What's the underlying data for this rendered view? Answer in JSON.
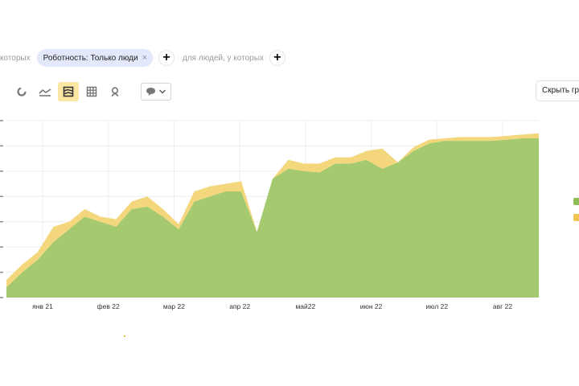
{
  "filters": {
    "left_text": "которых",
    "chip_label": "Роботность: Только люди",
    "chip_close": "×",
    "add_symbol": "+",
    "right_text": "для людей, у которых"
  },
  "toolbar": {
    "tools": [
      "donut-chart-icon",
      "line-chart-icon",
      "stacked-area-icon",
      "table-grid-icon",
      "map-pin-icon"
    ],
    "active_tool": "stacked-area-icon",
    "dropdown_icon": "speech-bubble-icon",
    "dropdown_arrow": "chevron-down-icon"
  },
  "hide_button": {
    "label": "Скрыть гр"
  },
  "colors": {
    "green": "#a5c96f",
    "yellow": "#f4d77c",
    "grid": "#ececec"
  },
  "chart_data": {
    "type": "area",
    "stacked": true,
    "x_ticks": [
      "янв 21",
      "фев 22",
      "мар 22",
      "апр 22",
      "май22",
      "июн 22",
      "июл 22",
      "авг 22"
    ],
    "ylim": [
      0,
      7
    ],
    "y_tick_count": 8,
    "grid": true,
    "legend": "right",
    "x": [
      "01.01",
      "08.01",
      "15.01",
      "22.01",
      "29.01",
      "05.02",
      "12.02",
      "19.02",
      "26.02",
      "05.03",
      "12.03",
      "19.03",
      "26.03",
      "02.04",
      "09.04",
      "16.04",
      "23.04",
      "30.04",
      "07.05",
      "14.05",
      "21.05",
      "28.05",
      "04.06",
      "11.06",
      "18.06",
      "25.06",
      "02.07",
      "09.07",
      "16.07",
      "23.07",
      "30.07",
      "06.08",
      "13.08",
      "20.08",
      "27.08"
    ],
    "series": [
      {
        "color": "#a5c96f",
        "values": [
          0.4,
          1.0,
          1.5,
          2.2,
          2.7,
          3.2,
          3.0,
          2.8,
          3.5,
          3.6,
          3.2,
          2.7,
          3.8,
          4.0,
          4.2,
          4.2,
          2.6,
          4.7,
          5.1,
          5.0,
          4.95,
          5.3,
          5.3,
          5.45,
          5.1,
          5.35,
          5.8,
          6.1,
          6.2,
          6.2,
          6.2,
          6.2,
          6.25,
          6.3,
          6.3
        ]
      },
      {
        "color": "#f4d77c",
        "values": [
          0.3,
          0.3,
          0.3,
          0.6,
          0.3,
          0.3,
          0.2,
          0.3,
          0.3,
          0.4,
          0.3,
          0.2,
          0.4,
          0.4,
          0.3,
          0.4,
          0.0,
          0.0,
          0.35,
          0.3,
          0.35,
          0.25,
          0.25,
          0.35,
          0.8,
          0.0,
          0.15,
          0.15,
          0.1,
          0.15,
          0.15,
          0.15,
          0.15,
          0.15,
          0.2
        ]
      }
    ]
  }
}
